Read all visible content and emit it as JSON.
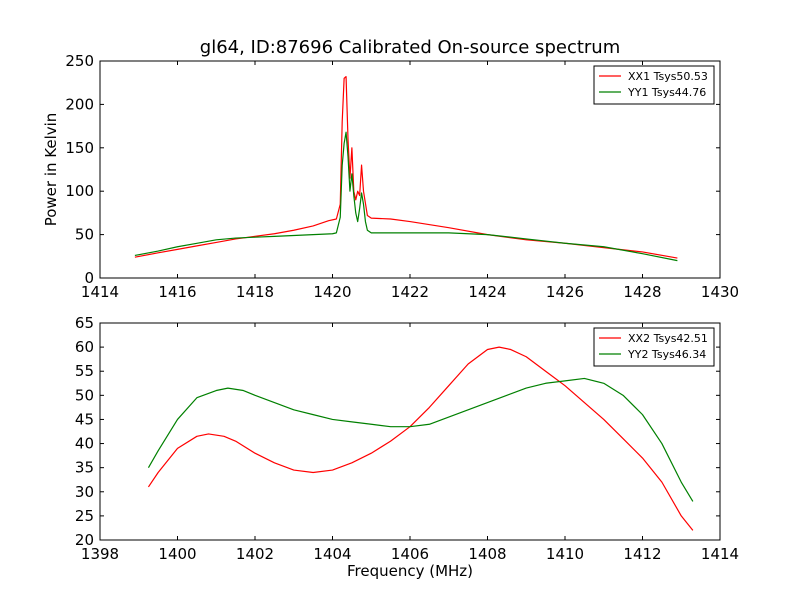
{
  "figure": {
    "title": "gl64, ID:87696 Calibrated On-source spectrum"
  },
  "chart_data": [
    {
      "type": "line",
      "ylabel": "Power in Kelvin",
      "xlabel": "",
      "xlim": [
        1414,
        1430
      ],
      "ylim": [
        0,
        250
      ],
      "xticks": [
        1414,
        1416,
        1418,
        1420,
        1422,
        1424,
        1426,
        1428,
        1430
      ],
      "yticks": [
        0,
        50,
        100,
        150,
        200,
        250
      ],
      "grid": false,
      "legend_position": "top-right",
      "series": [
        {
          "name": "XX1 Tsys50.53",
          "color": "#ff0000",
          "points": [
            [
              1414.9,
              24
            ],
            [
              1415.5,
              29
            ],
            [
              1416,
              33
            ],
            [
              1416.5,
              37
            ],
            [
              1417,
              41
            ],
            [
              1417.5,
              45
            ],
            [
              1418,
              48
            ],
            [
              1418.5,
              51
            ],
            [
              1419,
              55
            ],
            [
              1419.5,
              60
            ],
            [
              1419.9,
              66
            ],
            [
              1420.1,
              68
            ],
            [
              1420.2,
              85
            ],
            [
              1420.25,
              180
            ],
            [
              1420.3,
              230
            ],
            [
              1420.35,
              232
            ],
            [
              1420.4,
              160
            ],
            [
              1420.45,
              115
            ],
            [
              1420.5,
              150
            ],
            [
              1420.55,
              100
            ],
            [
              1420.6,
              90
            ],
            [
              1420.65,
              100
            ],
            [
              1420.7,
              95
            ],
            [
              1420.75,
              130
            ],
            [
              1420.8,
              100
            ],
            [
              1420.9,
              72
            ],
            [
              1421,
              69
            ],
            [
              1421.5,
              68
            ],
            [
              1422,
              65
            ],
            [
              1423,
              58
            ],
            [
              1424,
              50
            ],
            [
              1425,
              44
            ],
            [
              1426,
              40
            ],
            [
              1427,
              35
            ],
            [
              1428,
              30
            ],
            [
              1428.9,
              23
            ]
          ]
        },
        {
          "name": "YY1 Tsys44.76",
          "color": "#008000",
          "points": [
            [
              1414.9,
              26
            ],
            [
              1415.5,
              31
            ],
            [
              1416,
              36
            ],
            [
              1416.5,
              40
            ],
            [
              1417,
              44
            ],
            [
              1417.5,
              46
            ],
            [
              1418,
              47
            ],
            [
              1418.5,
              48
            ],
            [
              1419,
              49
            ],
            [
              1419.5,
              50
            ],
            [
              1420,
              51
            ],
            [
              1420.1,
              52
            ],
            [
              1420.2,
              70
            ],
            [
              1420.25,
              130
            ],
            [
              1420.3,
              155
            ],
            [
              1420.35,
              168
            ],
            [
              1420.4,
              140
            ],
            [
              1420.45,
              100
            ],
            [
              1420.5,
              120
            ],
            [
              1420.55,
              95
            ],
            [
              1420.6,
              75
            ],
            [
              1420.65,
              65
            ],
            [
              1420.7,
              80
            ],
            [
              1420.75,
              98
            ],
            [
              1420.8,
              85
            ],
            [
              1420.85,
              65
            ],
            [
              1420.9,
              55
            ],
            [
              1421,
              52
            ],
            [
              1422,
              52
            ],
            [
              1423,
              52
            ],
            [
              1424,
              50
            ],
            [
              1425,
              45
            ],
            [
              1426,
              40
            ],
            [
              1427,
              36
            ],
            [
              1428,
              28
            ],
            [
              1428.9,
              20
            ]
          ]
        }
      ]
    },
    {
      "type": "line",
      "ylabel": "",
      "xlabel": "Frequency (MHz)",
      "xlim": [
        1398,
        1414
      ],
      "ylim": [
        20,
        65
      ],
      "xticks": [
        1398,
        1400,
        1402,
        1404,
        1406,
        1408,
        1410,
        1412,
        1414
      ],
      "yticks": [
        20,
        25,
        30,
        35,
        40,
        45,
        50,
        55,
        60,
        65
      ],
      "grid": false,
      "legend_position": "top-right",
      "series": [
        {
          "name": "XX2 Tsys42.51",
          "color": "#ff0000",
          "points": [
            [
              1399.25,
              31
            ],
            [
              1399.5,
              34
            ],
            [
              1400,
              39
            ],
            [
              1400.5,
              41.5
            ],
            [
              1400.8,
              42
            ],
            [
              1401.2,
              41.5
            ],
            [
              1401.5,
              40.5
            ],
            [
              1402,
              38
            ],
            [
              1402.5,
              36
            ],
            [
              1403,
              34.5
            ],
            [
              1403.5,
              34
            ],
            [
              1404,
              34.5
            ],
            [
              1404.5,
              36
            ],
            [
              1405,
              38
            ],
            [
              1405.5,
              40.5
            ],
            [
              1406,
              43.5
            ],
            [
              1406.5,
              47.5
            ],
            [
              1407,
              52
            ],
            [
              1407.5,
              56.5
            ],
            [
              1408,
              59.5
            ],
            [
              1408.3,
              60
            ],
            [
              1408.6,
              59.5
            ],
            [
              1409,
              58
            ],
            [
              1409.5,
              55
            ],
            [
              1410,
              52
            ],
            [
              1410.5,
              48.5
            ],
            [
              1411,
              45
            ],
            [
              1411.5,
              41
            ],
            [
              1412,
              37
            ],
            [
              1412.5,
              32
            ],
            [
              1413,
              25
            ],
            [
              1413.3,
              22
            ]
          ]
        },
        {
          "name": "YY2 Tsys46.34",
          "color": "#008000",
          "points": [
            [
              1399.25,
              35
            ],
            [
              1399.5,
              38.5
            ],
            [
              1400,
              45
            ],
            [
              1400.5,
              49.5
            ],
            [
              1401,
              51
            ],
            [
              1401.3,
              51.5
            ],
            [
              1401.7,
              51
            ],
            [
              1402,
              50
            ],
            [
              1402.5,
              48.5
            ],
            [
              1403,
              47
            ],
            [
              1403.5,
              46
            ],
            [
              1404,
              45
            ],
            [
              1404.5,
              44.5
            ],
            [
              1405,
              44
            ],
            [
              1405.5,
              43.5
            ],
            [
              1406,
              43.5
            ],
            [
              1406.5,
              44
            ],
            [
              1407,
              45.5
            ],
            [
              1407.5,
              47
            ],
            [
              1408,
              48.5
            ],
            [
              1408.5,
              50
            ],
            [
              1409,
              51.5
            ],
            [
              1409.5,
              52.5
            ],
            [
              1410,
              53
            ],
            [
              1410.5,
              53.5
            ],
            [
              1411,
              52.5
            ],
            [
              1411.5,
              50
            ],
            [
              1412,
              46
            ],
            [
              1412.5,
              40
            ],
            [
              1413,
              32
            ],
            [
              1413.3,
              28
            ]
          ]
        }
      ]
    }
  ]
}
